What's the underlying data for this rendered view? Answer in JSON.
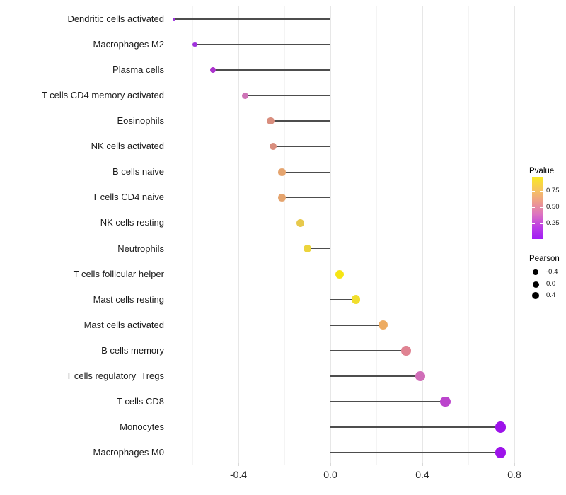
{
  "chart_data": {
    "type": "scatter",
    "style": "lollipop",
    "title": "",
    "xlabel": "",
    "ylabel": "",
    "grid": true,
    "legend_position": "right",
    "x_axis": {
      "range": [
        -0.7,
        0.86
      ],
      "ticks": [
        {
          "value": -0.4,
          "label": "-0.4"
        },
        {
          "value": 0.0,
          "label": "0.0"
        },
        {
          "value": 0.4,
          "label": "0.4"
        },
        {
          "value": 0.8,
          "label": "0.8"
        }
      ],
      "minor_ticks": [
        -0.6,
        -0.2,
        0.2,
        0.6
      ]
    },
    "categories": [
      "Dendritic cells activated",
      "Macrophages M2",
      "Plasma cells",
      "T cells CD4 memory activated",
      "Eosinophils",
      "NK cells activated",
      "B cells naive",
      "T cells CD4 naive",
      "NK cells resting",
      "Neutrophils",
      "T cells follicular helper",
      "Mast cells resting",
      "Mast cells activated",
      "B cells memory",
      "T cells regulatory  Tregs",
      "T cells CD8",
      "Monocytes",
      "Macrophages M0"
    ],
    "series": [
      {
        "name": "Pearson",
        "values": [
          -0.68,
          -0.59,
          -0.51,
          -0.37,
          -0.26,
          -0.25,
          -0.21,
          -0.21,
          -0.13,
          -0.1,
          0.04,
          0.11,
          0.23,
          0.33,
          0.39,
          0.5,
          0.74,
          0.74
        ]
      }
    ],
    "items": [
      {
        "label": "Dendritic cells activated",
        "pearson": -0.68,
        "color": "#9C33DB"
      },
      {
        "label": "Macrophages M2",
        "pearson": -0.59,
        "color": "#A032DC"
      },
      {
        "label": "Plasma cells",
        "pearson": -0.51,
        "color": "#AC34CD"
      },
      {
        "label": "T cells CD4 memory activated",
        "pearson": -0.37,
        "color": "#CE74B7"
      },
      {
        "label": "Eosinophils",
        "pearson": -0.26,
        "color": "#D98E7E"
      },
      {
        "label": "NK cells activated",
        "pearson": -0.25,
        "color": "#D98E7E"
      },
      {
        "label": "B cells naive",
        "pearson": -0.21,
        "color": "#E5A46E"
      },
      {
        "label": "T cells CD4 naive",
        "pearson": -0.21,
        "color": "#E5A46E"
      },
      {
        "label": "NK cells resting",
        "pearson": -0.13,
        "color": "#E7C94C"
      },
      {
        "label": "Neutrophils",
        "pearson": -0.1,
        "color": "#ECD43C"
      },
      {
        "label": "T cells follicular helper",
        "pearson": 0.04,
        "color": "#F6E513"
      },
      {
        "label": "Mast cells resting",
        "pearson": 0.11,
        "color": "#F1DE2D"
      },
      {
        "label": "Mast cells activated",
        "pearson": 0.23,
        "color": "#EDAB61"
      },
      {
        "label": "B cells memory",
        "pearson": 0.33,
        "color": "#E08392"
      },
      {
        "label": "T cells regulatory  Tregs",
        "pearson": 0.39,
        "color": "#D06DB8"
      },
      {
        "label": "T cells CD8",
        "pearson": 0.5,
        "color": "#BB44CC"
      },
      {
        "label": "Monocytes",
        "pearson": 0.74,
        "color": "#9D13EA"
      },
      {
        "label": "Macrophages M0",
        "pearson": 0.74,
        "color": "#9D13EA"
      }
    ],
    "stem_color": "#4d4d4d",
    "legend": {
      "pvalue": {
        "title": "Pvalue",
        "tick_labels": [
          "0.75",
          "0.50",
          "0.25"
        ],
        "gradient_top_to_bottom": [
          "#F9E824",
          "#F6C55F",
          "#EE9C8D",
          "#DC73C1",
          "#BC3FE5",
          "#A21EF5"
        ]
      },
      "pearson": {
        "title": "Pearson",
        "dot_color": "#000000",
        "entries": [
          {
            "value": -0.4,
            "label": "-0.4"
          },
          {
            "value": 0.0,
            "label": "0.0"
          },
          {
            "value": 0.4,
            "label": "0.4"
          }
        ]
      }
    }
  }
}
